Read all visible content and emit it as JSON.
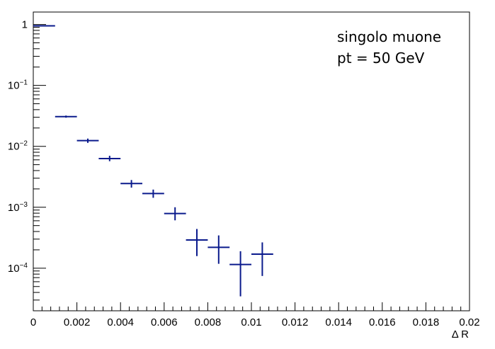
{
  "chart_data": {
    "type": "scatter",
    "title": "",
    "xlabel": "Δ R",
    "ylabel": "",
    "xscale": "linear",
    "yscale": "log",
    "xlim": [
      0,
      0.02
    ],
    "ylim": [
      2e-05,
      1.6
    ],
    "grid": false,
    "legend": "none",
    "series_color": "#0a1a8c",
    "annotations": [
      "singolo muone",
      "pt = 50 GeV"
    ],
    "x_tick_labels": [
      {
        "value": 0,
        "label": "0"
      },
      {
        "value": 0.002,
        "label": "0.002"
      },
      {
        "value": 0.004,
        "label": "0.004"
      },
      {
        "value": 0.006,
        "label": "0.006"
      },
      {
        "value": 0.008,
        "label": "0.008"
      },
      {
        "value": 0.01,
        "label": "0.01"
      },
      {
        "value": 0.012,
        "label": "0.012"
      },
      {
        "value": 0.014,
        "label": "0.014"
      },
      {
        "value": 0.016,
        "label": "0.016"
      },
      {
        "value": 0.018,
        "label": "0.018"
      },
      {
        "value": 0.02,
        "label": "0.02"
      }
    ],
    "y_tick_labels": [
      {
        "value": 1,
        "base": "1",
        "exp": ""
      },
      {
        "value": 0.1,
        "base": "10",
        "exp": "−1"
      },
      {
        "value": 0.01,
        "base": "10",
        "exp": "−2"
      },
      {
        "value": 0.001,
        "base": "10",
        "exp": "−3"
      },
      {
        "value": 0.0001,
        "base": "10",
        "exp": "−4"
      }
    ],
    "points": [
      {
        "x": 0.0005,
        "xerr": 0.0005,
        "y": 0.95,
        "ylo": 0.945,
        "yhi": 0.955
      },
      {
        "x": 0.0015,
        "xerr": 0.0005,
        "y": 0.0307,
        "ylo": 0.0295,
        "yhi": 0.032
      },
      {
        "x": 0.0025,
        "xerr": 0.0005,
        "y": 0.0124,
        "ylo": 0.0114,
        "yhi": 0.0134
      },
      {
        "x": 0.0035,
        "xerr": 0.0005,
        "y": 0.0063,
        "ylo": 0.0057,
        "yhi": 0.007
      },
      {
        "x": 0.0045,
        "xerr": 0.0005,
        "y": 0.00245,
        "ylo": 0.0021,
        "yhi": 0.0028
      },
      {
        "x": 0.0055,
        "xerr": 0.0005,
        "y": 0.00168,
        "ylo": 0.00143,
        "yhi": 0.00195
      },
      {
        "x": 0.0065,
        "xerr": 0.0005,
        "y": 0.00079,
        "ylo": 0.00061,
        "yhi": 0.001
      },
      {
        "x": 0.0075,
        "xerr": 0.0005,
        "y": 0.00029,
        "ylo": 0.000158,
        "yhi": 0.00044
      },
      {
        "x": 0.0085,
        "xerr": 0.0005,
        "y": 0.00022,
        "ylo": 0.000118,
        "yhi": 0.000345
      },
      {
        "x": 0.0095,
        "xerr": 0.0005,
        "y": 0.000115,
        "ylo": 3.45e-05,
        "yhi": 0.00019
      },
      {
        "x": 0.0105,
        "xerr": 0.0005,
        "y": 0.00017,
        "ylo": 7.45e-05,
        "yhi": 0.000265
      }
    ]
  }
}
